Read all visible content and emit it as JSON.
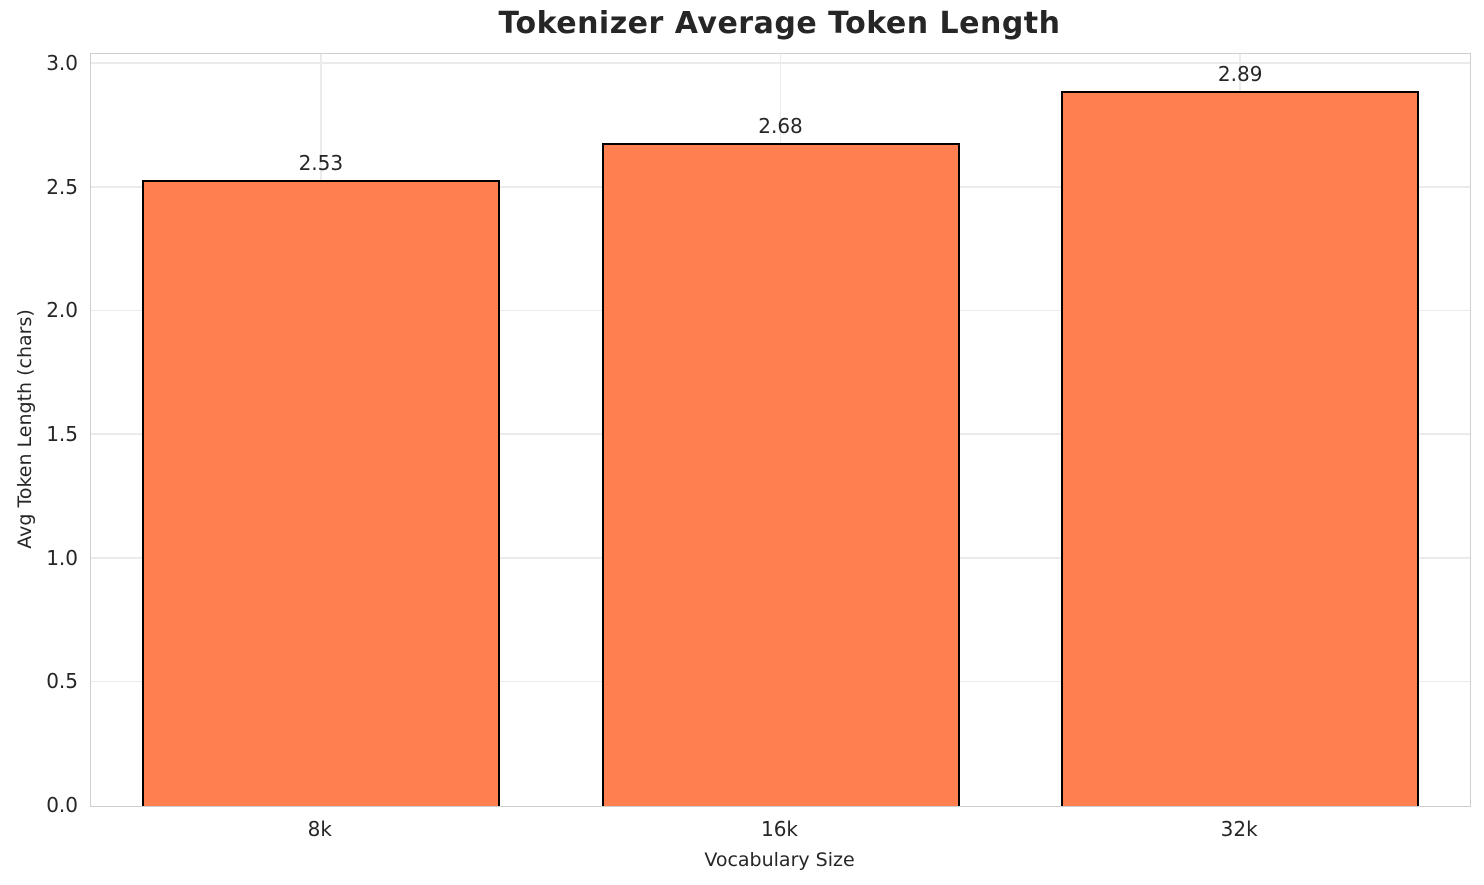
{
  "chart_data": {
    "type": "bar",
    "title": "Tokenizer Average Token Length",
    "xlabel": "Vocabulary Size",
    "ylabel": "Avg Token Length (chars)",
    "categories": [
      "8k",
      "16k",
      "32k"
    ],
    "values": [
      2.53,
      2.68,
      2.89
    ],
    "value_labels": [
      "2.53",
      "2.68",
      "2.89"
    ],
    "yticks": [
      0.0,
      0.5,
      1.0,
      1.5,
      2.0,
      2.5,
      3.0
    ],
    "ytick_labels": [
      "0.0",
      "0.5",
      "1.0",
      "1.5",
      "2.0",
      "2.5",
      "3.0"
    ],
    "ylim": [
      0,
      3.04
    ],
    "grid": true,
    "legend": null,
    "colors": {
      "bar_fill": "#FF7F50",
      "bar_edge": "#000000",
      "grid_line": "#ebebeb",
      "spine": "#cfcfcf",
      "text": "#262626",
      "background": "#ffffff"
    }
  }
}
